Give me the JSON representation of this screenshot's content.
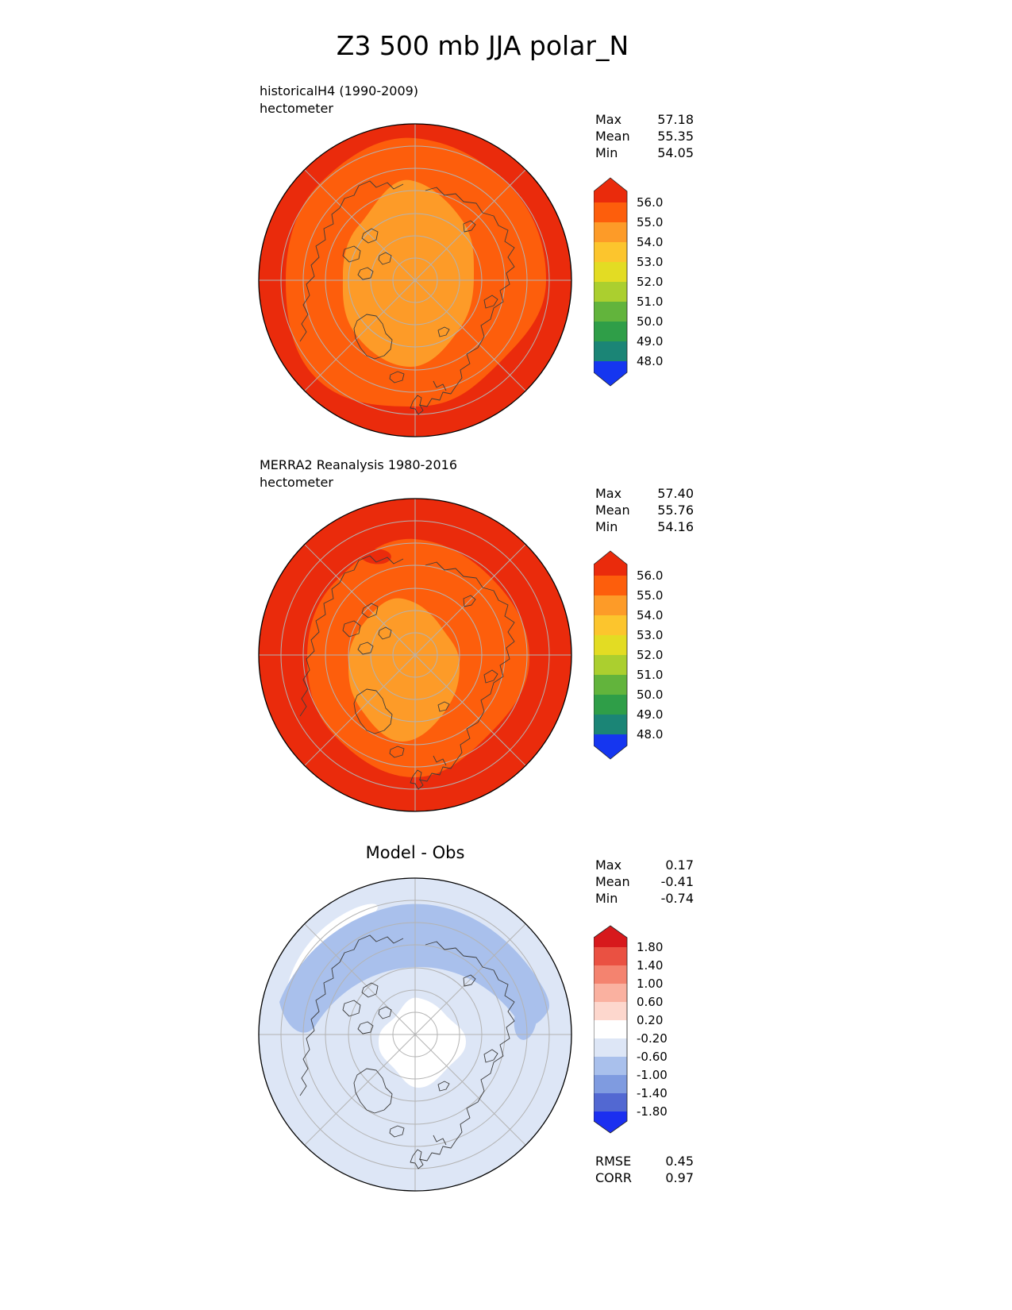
{
  "title": "Z3 500 mb JJA polar_N",
  "chart_data": [
    {
      "type": "heatmap",
      "projection": "polar_N",
      "panel_title": "historicalH4 (1990-2009)",
      "units": "hectometer",
      "stats": {
        "max_label": "Max",
        "max": "57.18",
        "mean_label": "Mean",
        "mean": "55.35",
        "min_label": "Min",
        "min": "54.05"
      },
      "colorbar": {
        "ticks": [
          "56.0",
          "55.0",
          "54.0",
          "53.0",
          "52.0",
          "51.0",
          "50.0",
          "49.0",
          "48.0"
        ],
        "colors": [
          "#ea2b0c",
          "#fd5e0c",
          "#fd9b28",
          "#fcc52d",
          "#e3dc23",
          "#abcf2f",
          "#62b43c",
          "#2f9e48",
          "#1b8576",
          "#1536f0"
        ],
        "note": "colors listed top(>56.0) to bottom(<48.0), arrows included"
      },
      "field_summary": "pole region 54-55 (orange), ring 55-56 (orange-red), outer latitudes >56 (red)"
    },
    {
      "type": "heatmap",
      "projection": "polar_N",
      "panel_title": "MERRA2 Reanalysis 1980-2016",
      "units": "hectometer",
      "stats": {
        "max_label": "Max",
        "max": "57.40",
        "mean_label": "Mean",
        "mean": "55.76",
        "min_label": "Min",
        "min": "54.16"
      },
      "colorbar": {
        "ticks": [
          "56.0",
          "55.0",
          "54.0",
          "53.0",
          "52.0",
          "51.0",
          "50.0",
          "49.0",
          "48.0"
        ],
        "colors": [
          "#ea2b0c",
          "#fd5e0c",
          "#fd9b28",
          "#fcc52d",
          "#e3dc23",
          "#abcf2f",
          "#62b43c",
          "#2f9e48",
          "#1b8576",
          "#1536f0"
        ],
        "note": "colors listed top(>56.0) to bottom(<48.0), arrows included"
      },
      "field_summary": "smaller 54-55 core near pole, broader 55-56 ring, >56 red outer band"
    },
    {
      "type": "heatmap",
      "projection": "polar_N",
      "panel_title": "Model - Obs",
      "units": "hectometer",
      "stats": {
        "max_label": "Max",
        "max": "0.17",
        "mean_label": "Mean",
        "mean": "-0.41",
        "min_label": "Min",
        "min": "-0.74"
      },
      "colorbar": {
        "ticks": [
          "1.80",
          "1.40",
          "1.00",
          "0.60",
          "0.20",
          "-0.20",
          "-0.60",
          "-1.00",
          "-1.40",
          "-1.80"
        ],
        "colors": [
          "#d7191c",
          "#ea5142",
          "#f4836f",
          "#fab1a0",
          "#fdd7cd",
          "#ffffff",
          "#dde6f6",
          "#a9c0ec",
          "#7f9be0",
          "#5268d2",
          "#1b2ff0"
        ],
        "note": "colors listed top(>1.80) to bottom(<-1.80), arrows included"
      },
      "metrics": {
        "rmse_label": "RMSE",
        "rmse": "0.45",
        "corr_label": "CORR",
        "corr": "0.97"
      },
      "field_summary": "mostly -0.6..-0.2 (light blue), -1.0..-0.6 band over Siberia/top, near-zero white over pole and upper-left"
    }
  ]
}
